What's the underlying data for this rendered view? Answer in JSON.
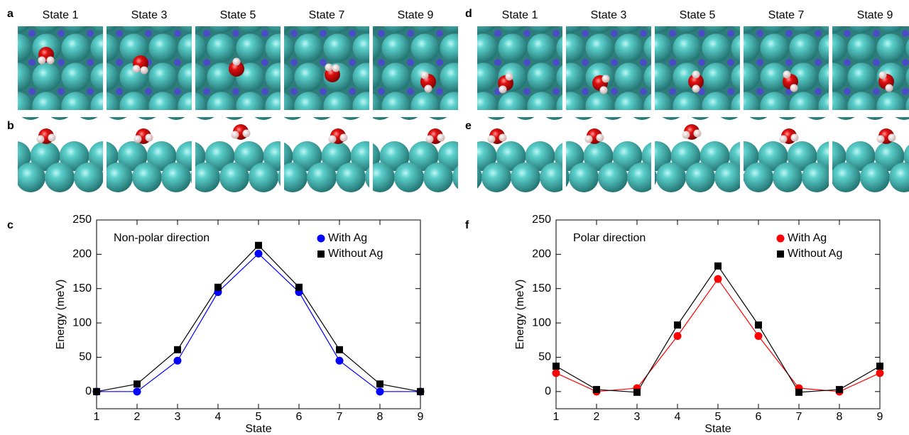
{
  "panel_labels": [
    "a",
    "b",
    "c",
    "d",
    "e",
    "f"
  ],
  "state_labels_left": [
    "State 1",
    "State 3",
    "State 5",
    "State 7",
    "State 9"
  ],
  "state_labels_right": [
    "State 1",
    "State 3",
    "State 5",
    "State 7",
    "State 9"
  ],
  "chart_data": [
    {
      "type": "line",
      "annotation": "Non-polar direction",
      "xlabel": "State",
      "ylabel": "Energy (meV)",
      "x": [
        1,
        2,
        3,
        4,
        5,
        6,
        7,
        8,
        9
      ],
      "xlim": [
        1,
        9
      ],
      "xticks": [
        1,
        2,
        3,
        4,
        5,
        6,
        7,
        8,
        9
      ],
      "ylim": [
        -25,
        250
      ],
      "yticks": [
        0,
        50,
        100,
        150,
        200,
        250
      ],
      "legend": "upper right",
      "series": [
        {
          "name": "With Ag",
          "color": "#0000ff",
          "marker": "circle",
          "values": [
            0,
            0,
            45,
            145,
            201,
            145,
            45,
            0,
            0
          ]
        },
        {
          "name": "Without Ag",
          "color": "#000000",
          "marker": "square",
          "values": [
            0,
            11,
            61,
            152,
            213,
            152,
            61,
            11,
            0
          ]
        }
      ]
    },
    {
      "type": "line",
      "annotation": "Polar direction",
      "xlabel": "State",
      "ylabel": "Energy (meV)",
      "x": [
        1,
        2,
        3,
        4,
        5,
        6,
        7,
        8,
        9
      ],
      "xlim": [
        1,
        9
      ],
      "xticks": [
        1,
        2,
        3,
        4,
        5,
        6,
        7,
        8,
        9
      ],
      "ylim": [
        -25,
        250
      ],
      "yticks": [
        0,
        50,
        100,
        150,
        200,
        250
      ],
      "legend": "upper right",
      "series": [
        {
          "name": "With Ag",
          "color": "#ff0000",
          "marker": "circle",
          "values": [
            27,
            0,
            5,
            81,
            164,
            81,
            5,
            0,
            27
          ]
        },
        {
          "name": "Without Ag",
          "color": "#000000",
          "marker": "square",
          "values": [
            37,
            3,
            -1,
            97,
            183,
            97,
            -1,
            3,
            37
          ]
        }
      ]
    }
  ]
}
